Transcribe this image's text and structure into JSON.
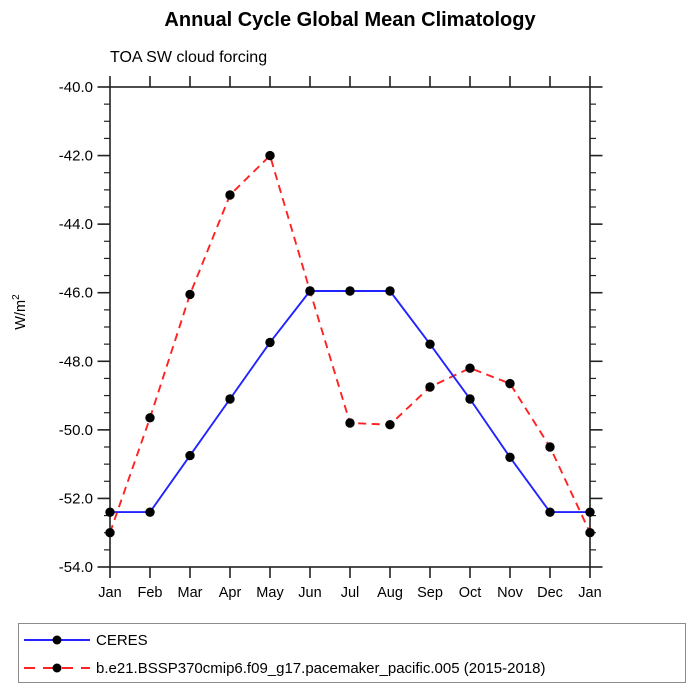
{
  "page": {
    "title": "Annual Cycle Global Mean Climatology",
    "subtitle": "TOA SW cloud forcing"
  },
  "colors": {
    "background": "#ffffff",
    "axis": "#222222",
    "text": "#000000",
    "legend_border": "#8c8c8c",
    "ceres_line": "#2323ff",
    "model_line": "#ff2222",
    "marker": "#000000"
  },
  "chart_data": {
    "type": "line",
    "title": "Annual Cycle Global Mean Climatology",
    "subtitle": "TOA SW cloud forcing",
    "xlabel": "",
    "ylabel": "W/m²",
    "ylabel_base": "W/m",
    "ylabel_exponent": "2",
    "categories": [
      "Jan",
      "Feb",
      "Mar",
      "Apr",
      "May",
      "Jun",
      "Jul",
      "Aug",
      "Sep",
      "Oct",
      "Nov",
      "Dec",
      "Jan"
    ],
    "ylim": [
      -54.0,
      -40.0
    ],
    "ytick_major_step": 2.0,
    "ytick_minor_step": 0.5,
    "ytick_labels": [
      "-40.0",
      "-42.0",
      "-44.0",
      "-46.0",
      "-48.0",
      "-50.0",
      "-52.0",
      "-54.0"
    ],
    "grid": false,
    "legend_position": "bottom-outside",
    "series": [
      {
        "name": "CERES",
        "color": "#2323ff",
        "line_style": "solid",
        "marker": "filled-circle",
        "marker_color": "#000000",
        "values": [
          -52.4,
          -52.4,
          -50.75,
          -49.1,
          -47.45,
          -45.95,
          -45.95,
          -45.95,
          -47.5,
          -49.1,
          -50.8,
          -52.4,
          -52.4
        ]
      },
      {
        "name": "b.e21.BSSP370cmip6.f09_g17.pacemaker_pacific.005 (2015-2018)",
        "color": "#ff2222",
        "line_style": "dashed",
        "marker": "filled-circle",
        "marker_color": "#000000",
        "values": [
          -53.0,
          -49.65,
          -46.05,
          -43.15,
          -42.0,
          -45.95,
          -49.8,
          -49.85,
          -48.75,
          -48.2,
          -48.65,
          -50.5,
          -53.0
        ]
      }
    ]
  }
}
